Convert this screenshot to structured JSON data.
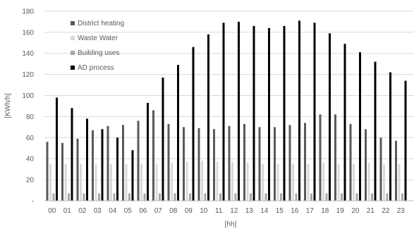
{
  "chart_data": {
    "type": "bar",
    "xlabel": "[hh]",
    "ylabel": "[KWh/h]",
    "ylim": [
      0,
      180
    ],
    "yticks": [
      "-",
      "20",
      "40",
      "60",
      "80",
      "100",
      "120",
      "140",
      "160",
      "180"
    ],
    "grid": true,
    "legend_position": "top-left",
    "categories": [
      "00",
      "01",
      "02",
      "03",
      "04",
      "05",
      "06",
      "07",
      "08",
      "09",
      "10",
      "11",
      "12",
      "13",
      "14",
      "15",
      "16",
      "17",
      "18",
      "19",
      "20",
      "21",
      "22",
      "23"
    ],
    "series": [
      {
        "name": "District heating",
        "color": "#595959",
        "values": [
          56,
          55,
          59,
          67,
          71,
          72,
          76,
          86,
          73,
          70,
          69,
          68,
          71,
          73,
          70,
          70,
          72,
          74,
          82,
          82,
          73,
          68,
          60,
          57
        ]
      },
      {
        "name": "Waste Water",
        "color": "#d9d9d9",
        "values": [
          35,
          35,
          35,
          35,
          35,
          35,
          35,
          35,
          36,
          37,
          38,
          37,
          37,
          36,
          35,
          35,
          35,
          35,
          36,
          35,
          35,
          36,
          35,
          35
        ]
      },
      {
        "name": "Building uses",
        "color": "#a6a6a6",
        "values": [
          7,
          7,
          7,
          7,
          7,
          7,
          7,
          7,
          7,
          7,
          7,
          7,
          7,
          7,
          7,
          7,
          7,
          7,
          7,
          7,
          7,
          7,
          7,
          7
        ]
      },
      {
        "name": "AD process",
        "color": "#000000",
        "values": [
          98,
          88,
          78,
          68,
          60,
          48,
          93,
          117,
          129,
          146,
          158,
          169,
          170,
          166,
          164,
          166,
          171,
          169,
          159,
          149,
          141,
          132,
          122,
          114
        ]
      }
    ]
  }
}
